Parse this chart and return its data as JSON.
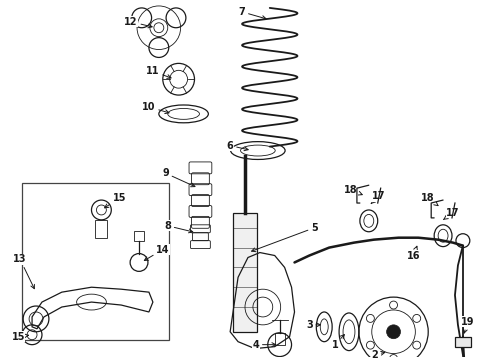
{
  "bg_color": "#ffffff",
  "line_color": "#1a1a1a",
  "figure_width": 4.9,
  "figure_height": 3.6,
  "dpi": 100
}
